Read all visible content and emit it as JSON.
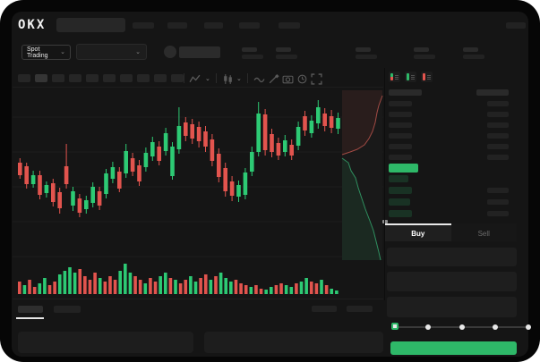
{
  "header": {
    "logo": "OKX",
    "nav_placeholder_count": 6,
    "stat_group_count": 5
  },
  "trading_controls": {
    "market_dropdown_label": "Spot Trading",
    "chevron": "⌄"
  },
  "chart_toolbar": {
    "timeframe_button_count": 10,
    "active_timeframe_index": 1
  },
  "order_book": {
    "view_toggles": [
      "combined-book-icon",
      "bids-only-icon",
      "asks-only-icon"
    ],
    "ask_row_count": 6,
    "bid_row_count": 4,
    "bid_depth_widths": [
      22,
      26,
      24,
      26
    ]
  },
  "trade_panel": {
    "buy_label": "Buy",
    "sell_label": "Sell",
    "field_count": 3,
    "slider_tick_count": 5,
    "slider_value_index": 0
  },
  "colors": {
    "candle_green": "#2dca74",
    "candle_red": "#e2544e",
    "accent_green": "#2eb868",
    "depth_ask_line": "#a14a44",
    "depth_bid_line": "#2f8f5f"
  },
  "chart_data": {
    "type": "candlestick",
    "title": "",
    "ylim": [
      0,
      200
    ],
    "grid": true,
    "candles_ochl": [
      [
        118,
        104,
        123,
        100
      ],
      [
        114,
        94,
        118,
        89
      ],
      [
        94,
        104,
        109,
        90
      ],
      [
        104,
        82,
        109,
        77
      ],
      [
        84,
        93,
        97,
        79
      ],
      [
        95,
        74,
        100,
        69
      ],
      [
        85,
        67,
        90,
        61
      ],
      [
        114,
        94,
        139,
        89
      ],
      [
        70,
        86,
        91,
        64
      ],
      [
        78,
        62,
        83,
        57
      ],
      [
        66,
        76,
        81,
        61
      ],
      [
        73,
        91,
        96,
        68
      ],
      [
        86,
        70,
        91,
        65
      ],
      [
        83,
        106,
        111,
        78
      ],
      [
        100,
        113,
        119,
        95
      ],
      [
        108,
        89,
        113,
        85
      ],
      [
        106,
        131,
        139,
        101
      ],
      [
        123,
        108,
        129,
        103
      ],
      [
        115,
        97,
        121,
        92
      ],
      [
        113,
        129,
        135,
        108
      ],
      [
        125,
        141,
        147,
        120
      ],
      [
        136,
        120,
        142,
        115
      ],
      [
        131,
        151,
        157,
        126
      ],
      [
        103,
        136,
        141,
        99
      ],
      [
        133,
        159,
        180,
        128
      ],
      [
        163,
        148,
        169,
        142
      ],
      [
        161,
        145,
        167,
        139
      ],
      [
        158,
        142,
        164,
        135
      ],
      [
        153,
        136,
        159,
        130
      ],
      [
        144,
        120,
        150,
        114
      ],
      [
        128,
        102,
        134,
        96
      ],
      [
        112,
        86,
        118,
        80
      ],
      [
        97,
        81,
        103,
        75
      ],
      [
        80,
        93,
        98,
        74
      ],
      [
        82,
        107,
        112,
        77
      ],
      [
        108,
        130,
        136,
        103
      ],
      [
        130,
        173,
        186,
        125
      ],
      [
        172,
        132,
        178,
        126
      ],
      [
        150,
        130,
        156,
        124
      ],
      [
        140,
        126,
        146,
        121
      ],
      [
        130,
        143,
        149,
        125
      ],
      [
        138,
        126,
        144,
        121
      ],
      [
        137,
        158,
        164,
        132
      ],
      [
        170,
        154,
        176,
        148
      ],
      [
        151,
        165,
        171,
        146
      ],
      [
        162,
        180,
        188,
        156
      ],
      [
        173,
        159,
        179,
        153
      ],
      [
        170,
        157,
        177,
        151
      ],
      [
        156,
        168,
        174,
        150
      ]
    ],
    "volume": {
      "heights": [
        14,
        10,
        16,
        8,
        12,
        18,
        10,
        14,
        22,
        26,
        30,
        24,
        28,
        20,
        16,
        24,
        18,
        14,
        20,
        16,
        26,
        34,
        24,
        20,
        16,
        12,
        18,
        14,
        20,
        24,
        18,
        16,
        12,
        16,
        20,
        14,
        18,
        22,
        16,
        20,
        24,
        18,
        14,
        16,
        12,
        10,
        8,
        10,
        6,
        5,
        8,
        10,
        12,
        10,
        8,
        12,
        14,
        18,
        14,
        12,
        16,
        10,
        6,
        4
      ],
      "colors": "rgrrggrrggggrrrrgrrrgggrrgrrggrgrrggrrgrgggrrrgrrggrrggrggrrgrgg"
    },
    "depth": {
      "asks_line": [
        [
          368,
          77
        ],
        [
          377,
          74
        ],
        [
          385,
          71
        ],
        [
          393,
          66
        ],
        [
          398,
          59
        ],
        [
          402,
          51
        ],
        [
          405,
          41
        ],
        [
          407,
          30
        ],
        [
          409,
          22
        ],
        [
          413,
          11
        ]
      ],
      "bids_line": [
        [
          368,
          81
        ],
        [
          375,
          86
        ],
        [
          378,
          95
        ],
        [
          383,
          103
        ],
        [
          386,
          114
        ],
        [
          390,
          126
        ],
        [
          394,
          138
        ],
        [
          399,
          151
        ],
        [
          403,
          162
        ],
        [
          406,
          174
        ],
        [
          409,
          186
        ],
        [
          411,
          195
        ]
      ]
    }
  }
}
